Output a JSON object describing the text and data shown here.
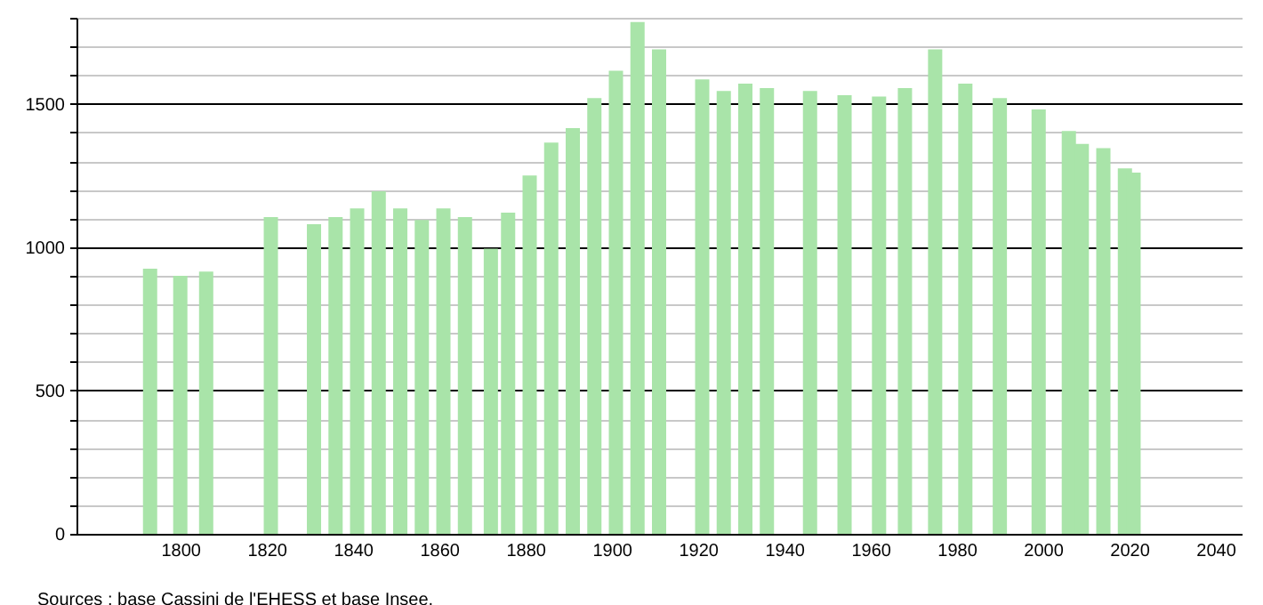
{
  "chart_data": {
    "type": "bar",
    "x": [
      1793,
      1800,
      1806,
      1821,
      1831,
      1836,
      1841,
      1846,
      1851,
      1856,
      1861,
      1866,
      1872,
      1876,
      1881,
      1886,
      1891,
      1896,
      1901,
      1906,
      1911,
      1921,
      1926,
      1931,
      1936,
      1946,
      1954,
      1962,
      1968,
      1975,
      1982,
      1990,
      1999,
      2006,
      2009,
      2014,
      2019,
      2021
    ],
    "values": [
      925,
      900,
      915,
      1105,
      1080,
      1105,
      1135,
      1195,
      1135,
      1095,
      1135,
      1105,
      995,
      1120,
      1250,
      1365,
      1415,
      1520,
      1615,
      1785,
      1690,
      1585,
      1545,
      1570,
      1555,
      1545,
      1530,
      1525,
      1555,
      1690,
      1570,
      1520,
      1480,
      1405,
      1360,
      1345,
      1275,
      1260
    ],
    "color": "#a9e4a9",
    "xlim": [
      1778,
      2044
    ],
    "xticks": [
      1800,
      1820,
      1840,
      1860,
      1880,
      1900,
      1920,
      1940,
      1960,
      1980,
      2000,
      2020,
      2040
    ],
    "ylim": [
      0,
      1800
    ],
    "yticks": [
      0,
      {
        "value": 100,
        "label": null
      },
      {
        "value": 200,
        "label": null
      },
      {
        "value": 300,
        "label": null
      },
      {
        "value": 400,
        "label": null
      },
      500,
      {
        "value": 600,
        "label": null
      },
      {
        "value": 700,
        "label": null
      },
      {
        "value": 800,
        "label": null
      },
      {
        "value": 900,
        "label": null
      },
      1000,
      {
        "value": 1100,
        "label": null
      },
      {
        "value": 1200,
        "label": null
      },
      {
        "value": 1300,
        "label": null
      },
      {
        "value": 1400,
        "label": null
      },
      1500,
      {
        "value": 1600,
        "label": null
      },
      {
        "value": 1700,
        "label": null
      },
      {
        "value": 1800,
        "label": null
      }
    ],
    "grid": "y",
    "annotations": [
      "Sources : base Cassini de l'EHESS et base Insee."
    ]
  }
}
